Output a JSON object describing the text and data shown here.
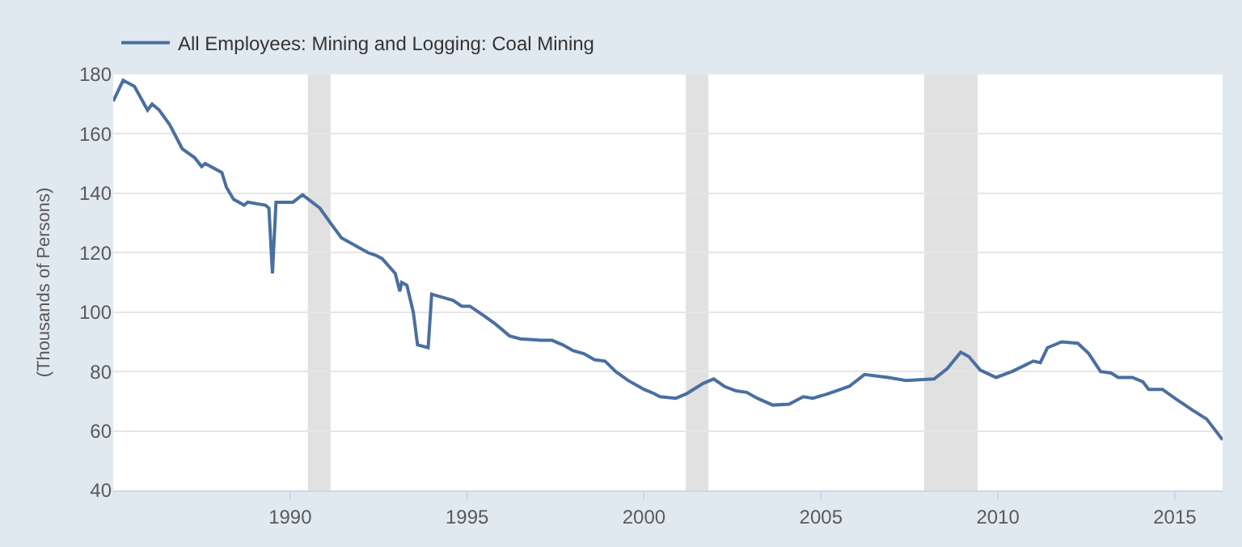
{
  "chart_data": {
    "type": "line",
    "ylabel": "(Thousands of Persons)",
    "series": [
      {
        "name": "All Employees: Mining and Logging: Coal Mining",
        "color": "#4a6fa0",
        "x": [
          1985.0,
          1985.28,
          1985.6,
          1985.97,
          1986.1,
          1986.3,
          1986.6,
          1986.95,
          1987.3,
          1987.5,
          1987.6,
          1988.07,
          1988.2,
          1988.4,
          1988.7,
          1988.8,
          1989.3,
          1989.4,
          1989.5,
          1989.6,
          1990.08,
          1990.35,
          1990.84,
          1991.14,
          1991.45,
          1991.75,
          1992.2,
          1992.44,
          1992.6,
          1992.97,
          1993.1,
          1993.15,
          1993.3,
          1993.48,
          1993.6,
          1993.9,
          1994.0,
          1994.3,
          1994.6,
          1994.85,
          1995.08,
          1995.45,
          1995.8,
          1996.2,
          1996.5,
          1997.1,
          1997.4,
          1997.7,
          1998.0,
          1998.3,
          1998.6,
          1998.9,
          1999.2,
          1999.55,
          2000.0,
          2000.3,
          2000.45,
          2000.9,
          2001.2,
          2001.67,
          2001.97,
          2002.27,
          2002.6,
          2002.9,
          2003.2,
          2003.64,
          2004.1,
          2004.5,
          2004.77,
          2005.2,
          2005.8,
          2006.23,
          2006.9,
          2007.4,
          2008.2,
          2008.57,
          2008.95,
          2009.18,
          2009.5,
          2009.95,
          2010.4,
          2011.0,
          2011.2,
          2011.4,
          2011.8,
          2012.26,
          2012.57,
          2012.9,
          2013.2,
          2013.4,
          2013.8,
          2014.1,
          2014.26,
          2014.65,
          2015.0,
          2015.5,
          2015.9,
          2016.35
        ],
        "values": [
          171,
          178,
          176,
          168,
          170,
          168,
          163,
          155,
          152,
          149,
          150,
          147,
          142,
          138,
          136,
          137,
          136,
          135,
          113,
          137,
          137,
          139.5,
          135,
          130,
          125,
          123,
          120,
          119,
          118,
          113,
          107,
          110,
          109,
          100,
          89,
          88,
          106,
          105,
          104,
          102,
          102,
          99,
          96,
          92,
          91,
          90.5,
          90.5,
          89,
          87,
          86,
          84,
          83.5,
          80,
          77,
          74,
          72.5,
          71.5,
          71,
          72.5,
          76,
          77.5,
          75,
          73.5,
          73,
          71,
          68.7,
          69,
          71.5,
          71,
          72.5,
          75,
          79,
          78,
          77,
          77.5,
          81,
          86.5,
          85,
          80.5,
          78,
          80,
          83.5,
          83,
          88,
          90,
          89.5,
          86,
          80,
          79.5,
          78,
          78,
          76.5,
          74,
          74,
          71,
          67,
          64,
          57
        ]
      }
    ],
    "xlim": [
      1985,
      2016.35
    ],
    "xticks": [
      1990,
      1995,
      2000,
      2005,
      2010,
      2015
    ],
    "ylim": [
      40,
      180
    ],
    "yticks": [
      40,
      60,
      80,
      100,
      120,
      140,
      160,
      180
    ],
    "bands": [
      {
        "axis": "x",
        "from": 1990.5,
        "to": 1991.14,
        "color": "#e1e1e1"
      },
      {
        "axis": "x",
        "from": 2001.18,
        "to": 2001.82,
        "color": "#e1e1e1"
      },
      {
        "axis": "x",
        "from": 2007.92,
        "to": 2009.43,
        "color": "#e1e1e1"
      }
    ],
    "grid": "y",
    "legend": "top left",
    "line_style": "solid",
    "marker": "none"
  }
}
